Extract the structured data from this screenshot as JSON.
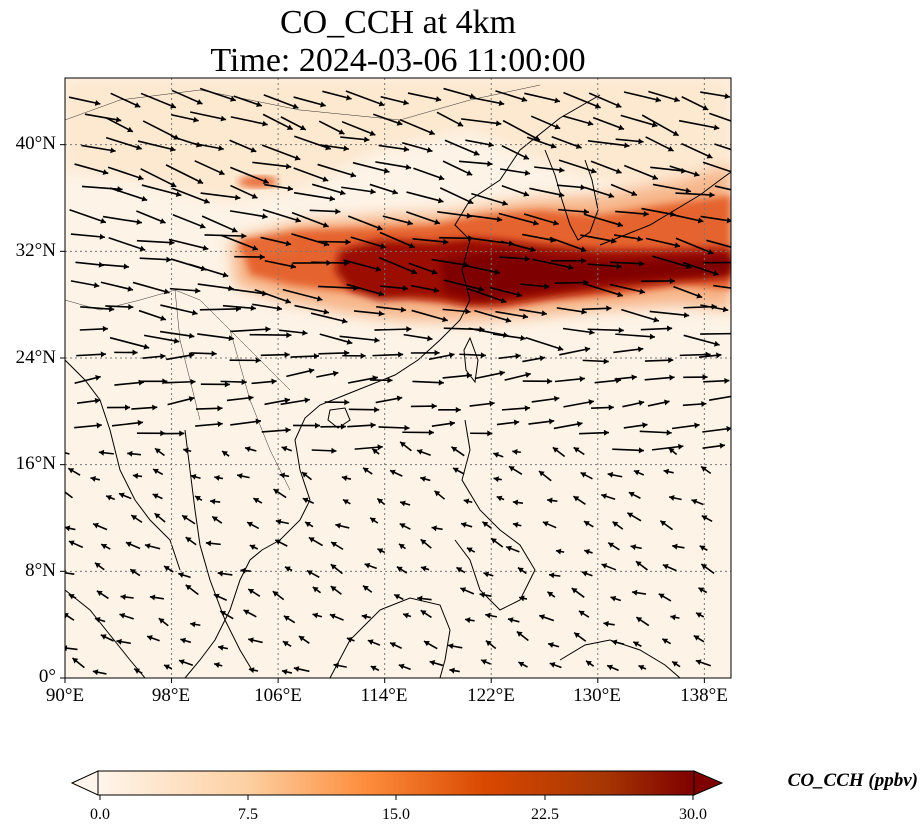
{
  "title": {
    "line1": "CO_CCH at 4km",
    "line2": "Time: 2024-03-06 11:00:00"
  },
  "map": {
    "projection": "PlateCarree",
    "lon_range": [
      90,
      140
    ],
    "lat_range": [
      0,
      45
    ],
    "gridlines": "dotted",
    "lon_ticks": [
      {
        "value": 90,
        "label": "90°E"
      },
      {
        "value": 98,
        "label": "98°E"
      },
      {
        "value": 106,
        "label": "106°E"
      },
      {
        "value": 114,
        "label": "114°E"
      },
      {
        "value": 122,
        "label": "122°E"
      },
      {
        "value": 130,
        "label": "130°E"
      },
      {
        "value": 138,
        "label": "138°E"
      }
    ],
    "lat_ticks": [
      {
        "value": 0,
        "label": "0°"
      },
      {
        "value": 8,
        "label": "8°N"
      },
      {
        "value": 16,
        "label": "16°N"
      },
      {
        "value": 24,
        "label": "24°N"
      },
      {
        "value": 32,
        "label": "32°N"
      },
      {
        "value": 40,
        "label": "40°N"
      }
    ],
    "field_description": "CO concentration plume over East China Sea extending east to Japan; wind vectors from west"
  },
  "colorbar": {
    "label": "CO_CCH (ppbv)",
    "min": 0.0,
    "max": 30.0,
    "extend": "both",
    "colormap": [
      "#fff5eb",
      "#fee6ce",
      "#fdd0a2",
      "#fdae6b",
      "#fd8d3c",
      "#f16913",
      "#d94801",
      "#a63603",
      "#7f2704"
    ],
    "ticks": [
      "0.0",
      "7.5",
      "15.0",
      "22.5",
      "30.0"
    ]
  },
  "colors": {
    "background": "#fdf3e6",
    "coast": "#000000",
    "grid": "#777777"
  }
}
